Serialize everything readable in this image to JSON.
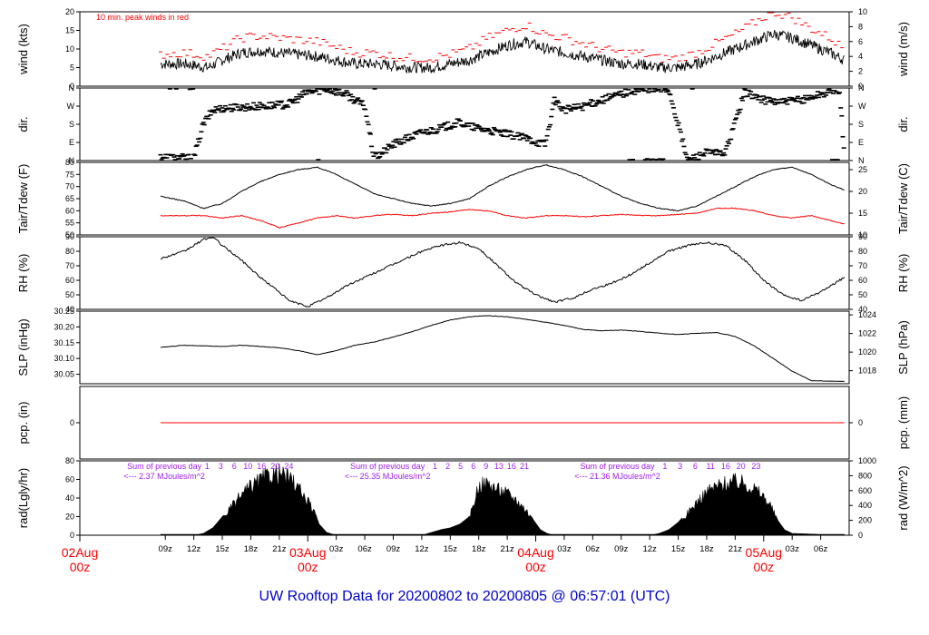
{
  "footer_title": "UW Rooftop Data for 20200802  to  20200805 @ 06:57:01  (UTC)",
  "colors": {
    "axis": "#000000",
    "peak": "#ff0000",
    "dewpoint": "#ff0000",
    "precip": "#ff0000",
    "note": "#a020f0",
    "footer": "#0000cc",
    "day_label": "#ff0000"
  },
  "chart_data": [
    {
      "type": "line",
      "panel": "wind",
      "ylabel_left": "wind (kts)",
      "ylabel_right": "wind (m/s)",
      "annotation": "10 min. peak winds in red",
      "ylim": [
        0,
        20
      ],
      "ticks_left": [
        "0",
        "5",
        "10",
        "15",
        "20"
      ],
      "ticks_right": [
        "0",
        "2",
        "4",
        "6",
        "8",
        "10"
      ],
      "series": [
        {
          "color": "#000000",
          "x": [
            8.5,
            11,
            13.5,
            15,
            17,
            19,
            21,
            23,
            25,
            27,
            29,
            31,
            33,
            35,
            37,
            39,
            41,
            43,
            45,
            47,
            49,
            51,
            53,
            55,
            57,
            59,
            61,
            63,
            65,
            67,
            69,
            71,
            73,
            75,
            77,
            79,
            80.5
          ],
          "values": [
            6,
            6,
            5,
            7,
            9,
            9.5,
            9,
            8.5,
            8,
            7,
            6,
            6,
            5.5,
            5,
            5,
            6,
            7,
            9,
            11,
            12,
            10,
            9,
            8,
            7,
            6,
            6,
            5,
            5,
            6,
            8,
            10,
            12,
            14,
            13,
            11,
            9,
            7
          ]
        },
        {
          "color": "#ff0000",
          "x": [
            8.5,
            11,
            13.5,
            15,
            17,
            19,
            21,
            23,
            25,
            27,
            29,
            31,
            33,
            35,
            37,
            39,
            41,
            43,
            45,
            47,
            49,
            51,
            53,
            55,
            57,
            59,
            61,
            63,
            65,
            67,
            69,
            71,
            73,
            75,
            77,
            79,
            80.5
          ],
          "values": [
            8.5,
            9,
            8,
            10,
            13,
            13.5,
            13,
            12.5,
            12,
            10.5,
            9,
            9,
            8,
            7.5,
            7.5,
            8.5,
            10,
            13,
            15,
            16.5,
            14,
            13,
            11.5,
            10,
            9,
            9,
            7.5,
            7.5,
            9,
            11.5,
            14,
            17,
            20,
            18.5,
            15.5,
            13,
            10
          ]
        }
      ]
    },
    {
      "type": "scatter",
      "panel": "direction",
      "ylabel_left": "dir.",
      "ylabel_right": "dir.",
      "ticks_left": [
        "N",
        "E",
        "S",
        "W",
        "N"
      ],
      "ticks_right": [
        "N",
        "E",
        "S",
        "W",
        "N"
      ],
      "series": [
        {
          "color": "#000000",
          "x": [
            8.5,
            10,
            12,
            13,
            14,
            15,
            17,
            19,
            21,
            22,
            24,
            26,
            28,
            30,
            31,
            33,
            35,
            36,
            38,
            40,
            41,
            43,
            45,
            47,
            49,
            50,
            51,
            53,
            55,
            57,
            58,
            60,
            62,
            64,
            66,
            67,
            68,
            70,
            72,
            74,
            76,
            78,
            80,
            80.5
          ],
          "values": [
            20,
            15,
            12,
            180,
            250,
            260,
            265,
            270,
            275,
            280,
            340,
            355,
            330,
            270,
            10,
            80,
            120,
            140,
            160,
            190,
            170,
            150,
            130,
            110,
            80,
            300,
            250,
            270,
            300,
            330,
            345,
            350,
            355,
            0,
            40,
            35,
            40,
            340,
            300,
            290,
            300,
            330,
            350,
            20
          ]
        }
      ]
    },
    {
      "type": "line",
      "panel": "temperature",
      "ylabel_left": "Tair/Tdew (F)",
      "ylabel_right": "Tair/Tdew (C)",
      "ylim": [
        50,
        80
      ],
      "ticks_left": [
        "50",
        "55",
        "60",
        "65",
        "70",
        "75",
        "80"
      ],
      "ticks_right": [
        "10",
        "15",
        "20",
        "25"
      ],
      "series": [
        {
          "color": "#000000",
          "x": [
            8.5,
            11,
            13,
            15,
            17,
            19,
            21,
            23,
            25,
            27,
            29,
            31,
            33,
            35,
            37,
            39,
            41,
            43,
            45,
            47,
            49,
            51,
            53,
            55,
            57,
            59,
            61,
            63,
            65,
            67,
            69,
            71,
            73,
            75,
            77,
            79,
            80.5
          ],
          "values": [
            66,
            64,
            61,
            63,
            68,
            72,
            75,
            77,
            78,
            75,
            71,
            67,
            65,
            63,
            62,
            63,
            65,
            70,
            74,
            77,
            79,
            77,
            74,
            70,
            66,
            63,
            61,
            60,
            62,
            66,
            70,
            74,
            77,
            78,
            75,
            71,
            68.5
          ]
        },
        {
          "color": "#ff0000",
          "x": [
            8.5,
            11,
            13,
            15,
            17,
            19,
            21,
            23,
            25,
            27,
            29,
            31,
            33,
            35,
            37,
            39,
            41,
            43,
            45,
            47,
            49,
            51,
            53,
            55,
            57,
            59,
            61,
            63,
            65,
            67,
            69,
            71,
            73,
            75,
            77,
            79,
            80.5
          ],
          "values": [
            58,
            58,
            58,
            57,
            58,
            56,
            53,
            55,
            57,
            58,
            57,
            58,
            58.5,
            58,
            59,
            59.5,
            60.5,
            60,
            58,
            57,
            58,
            58,
            57.5,
            58,
            58.5,
            58,
            58,
            58.5,
            59,
            61,
            61,
            60,
            58,
            57,
            58,
            56,
            54.5
          ]
        }
      ]
    },
    {
      "type": "line",
      "panel": "humidity",
      "ylabel_left": "RH (%)",
      "ylabel_right": "RH (%)",
      "ylim": [
        40,
        90
      ],
      "ticks_left": [
        "40",
        "50",
        "60",
        "70",
        "80",
        "90"
      ],
      "ticks_right": [
        "40",
        "50",
        "60",
        "70",
        "80",
        "90"
      ],
      "series": [
        {
          "color": "#000000",
          "x": [
            8.5,
            11,
            13,
            14,
            15,
            17,
            19,
            21,
            22,
            24,
            26,
            28,
            30,
            32,
            34,
            36,
            38,
            40,
            42,
            44,
            46,
            48,
            50,
            52,
            54,
            56,
            58,
            60,
            62,
            64,
            66,
            68,
            70,
            72,
            74,
            76,
            78,
            80.5
          ],
          "values": [
            75,
            80,
            88,
            90,
            84,
            74,
            62,
            52,
            46,
            42,
            48,
            56,
            62,
            68,
            74,
            80,
            84,
            86,
            82,
            70,
            58,
            50,
            45,
            48,
            54,
            58,
            64,
            72,
            80,
            84,
            86,
            84,
            74,
            60,
            50,
            46,
            52,
            62
          ]
        }
      ]
    },
    {
      "type": "line",
      "panel": "pressure",
      "ylabel_left": "SLP (inHg)",
      "ylabel_right": "SLP (hPa)",
      "ylim": [
        30.02,
        30.25
      ],
      "ticks_left": [
        "30.05",
        "30.10",
        "30.15",
        "30.20",
        "30.25"
      ],
      "ticks_right": [
        "1018",
        "1020",
        "1022",
        "1024"
      ],
      "series": [
        {
          "color": "#000000",
          "x": [
            8.5,
            11,
            13,
            15,
            17,
            19,
            21,
            23,
            25,
            27,
            29,
            31,
            33,
            35,
            37,
            39,
            41,
            43,
            45,
            47,
            49,
            51,
            53,
            55,
            57,
            59,
            61,
            63,
            65,
            67,
            69,
            71,
            73,
            75,
            77,
            79,
            80.5
          ],
          "values": [
            30.135,
            30.142,
            30.14,
            30.138,
            30.142,
            30.138,
            30.134,
            30.125,
            30.112,
            30.125,
            30.142,
            30.152,
            30.168,
            30.185,
            30.205,
            30.222,
            30.232,
            30.236,
            30.232,
            30.224,
            30.215,
            30.205,
            30.192,
            30.188,
            30.19,
            30.186,
            30.18,
            30.176,
            30.18,
            30.182,
            30.17,
            30.14,
            30.1,
            30.06,
            30.03,
            30.028,
            30.028
          ]
        }
      ]
    },
    {
      "type": "line",
      "panel": "precipitation",
      "ylabel_left": "pcp. (in)",
      "ylabel_right": "pcp. (mm)",
      "ylim": [
        -1,
        1
      ],
      "ticks_left": [
        "0"
      ],
      "ticks_right": [
        "0"
      ],
      "series": [
        {
          "color": "#ff0000",
          "x": [
            8.5,
            80.5
          ],
          "values": [
            0,
            0
          ]
        }
      ]
    },
    {
      "type": "area",
      "panel": "radiation",
      "ylabel_left": "rad(Lgly/hr)",
      "ylabel_right": "rad (W/m^2)",
      "ylim": [
        0,
        80
      ],
      "ticks_left": [
        "0",
        "20",
        "40",
        "60",
        "80"
      ],
      "ticks_right": [
        "0",
        "200",
        "400",
        "600",
        "800",
        "1000"
      ],
      "series": [
        {
          "color": "#000000",
          "x": [
            8.5,
            12,
            13,
            14,
            15,
            16,
            17,
            18,
            19,
            20,
            21,
            22,
            22.8,
            23.5,
            24.5,
            25.2,
            26,
            27,
            36,
            37,
            38,
            39,
            40,
            41,
            42,
            43,
            44,
            45,
            46,
            47,
            47.8,
            48.5,
            49.2,
            50,
            51,
            60,
            61,
            62,
            63,
            64,
            65,
            66,
            67,
            68,
            69,
            70,
            71,
            72,
            72.8,
            73.5,
            74.2,
            75,
            80.5
          ],
          "values": [
            0,
            0,
            2,
            8,
            20,
            34,
            48,
            58,
            66,
            72,
            74,
            68,
            60,
            48,
            32,
            12,
            3,
            0,
            0,
            3,
            6,
            8,
            12,
            20,
            60,
            62,
            55,
            50,
            42,
            30,
            16,
            6,
            2,
            0,
            0,
            0,
            2,
            6,
            14,
            26,
            40,
            52,
            58,
            62,
            64,
            62,
            56,
            46,
            34,
            16,
            6,
            2,
            0
          ]
        }
      ],
      "hour_markers": [
        {
          "labels": [
            "1",
            "3",
            "6",
            "10",
            "16",
            "20",
            "24"
          ]
        },
        {
          "labels": [
            "1",
            "2",
            "5",
            "6",
            "9",
            "13",
            "16",
            "21"
          ]
        },
        {
          "labels": [
            "1",
            "3",
            "6",
            "11",
            "16",
            "20",
            "23"
          ]
        }
      ],
      "annotations": [
        {
          "line1": "Sum of previous day",
          "line2": "<--- 2.37 MJoules/m^2"
        },
        {
          "line1": "Sum of previous day",
          "line2": "<--- 25.35 MJoules/m^2"
        },
        {
          "line1": "Sum of previous day",
          "line2": "<--- 21.36 MJoules/m^2"
        }
      ]
    }
  ],
  "x_axis": {
    "ticks": [
      {
        "h": 9,
        "label": "09z"
      },
      {
        "h": 12,
        "label": "12z"
      },
      {
        "h": 15,
        "label": "15z"
      },
      {
        "h": 18,
        "label": "18z"
      },
      {
        "h": 21,
        "label": "21z"
      },
      {
        "h": 27,
        "label": "03z"
      },
      {
        "h": 30,
        "label": "06z"
      },
      {
        "h": 33,
        "label": "09z"
      },
      {
        "h": 36,
        "label": "12z"
      },
      {
        "h": 39,
        "label": "15z"
      },
      {
        "h": 42,
        "label": "18z"
      },
      {
        "h": 45,
        "label": "21z"
      },
      {
        "h": 51,
        "label": "03z"
      },
      {
        "h": 54,
        "label": "06z"
      },
      {
        "h": 57,
        "label": "09z"
      },
      {
        "h": 60,
        "label": "12z"
      },
      {
        "h": 63,
        "label": "15z"
      },
      {
        "h": 66,
        "label": "18z"
      },
      {
        "h": 69,
        "label": "21z"
      },
      {
        "h": 75,
        "label": "03z"
      },
      {
        "h": 78,
        "label": "06z"
      }
    ],
    "days": [
      {
        "h": 0,
        "line1": "02Aug",
        "line2": "00z"
      },
      {
        "h": 24,
        "line1": "03Aug",
        "line2": "00z"
      },
      {
        "h": 48,
        "line1": "04Aug",
        "line2": "00z"
      },
      {
        "h": 72,
        "line1": "05Aug",
        "line2": "00z"
      }
    ]
  }
}
